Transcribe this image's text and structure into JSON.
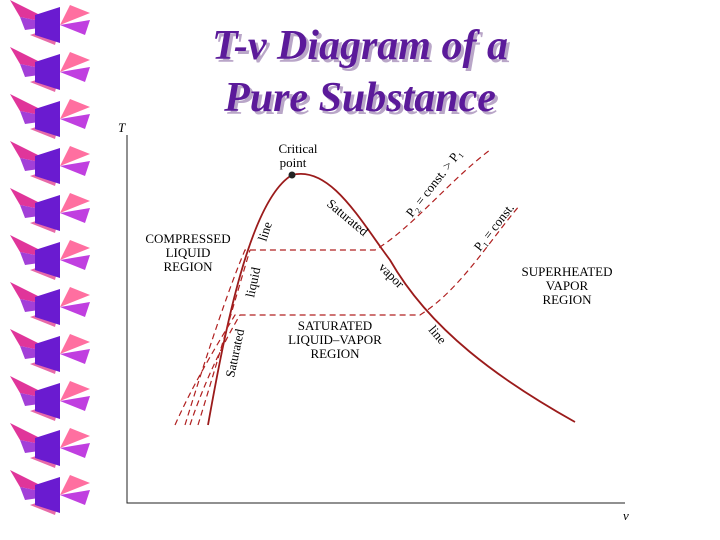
{
  "header": {
    "title_lines": [
      "T-v Diagram of a",
      "Pure Substance"
    ]
  },
  "diagram": {
    "axis_y": "T",
    "axis_x": "v",
    "critical_point": [
      "Critical",
      "point"
    ],
    "compressed_region": [
      "COMPRESSED",
      "LIQUID",
      "REGION"
    ],
    "superheated_region": [
      "SUPERHEATED",
      "VAPOR",
      "REGION"
    ],
    "saturated_region": [
      "SATURATED",
      "LIQUID–VAPOR",
      "REGION"
    ],
    "sat_liquid_line": [
      "Saturated",
      "liquid",
      "line"
    ],
    "sat_vapor_line": [
      "Saturated",
      "vapor",
      "line"
    ],
    "isobar_high": "P₂ = const. > P₁",
    "isobar_low": "P₁ = const."
  }
}
